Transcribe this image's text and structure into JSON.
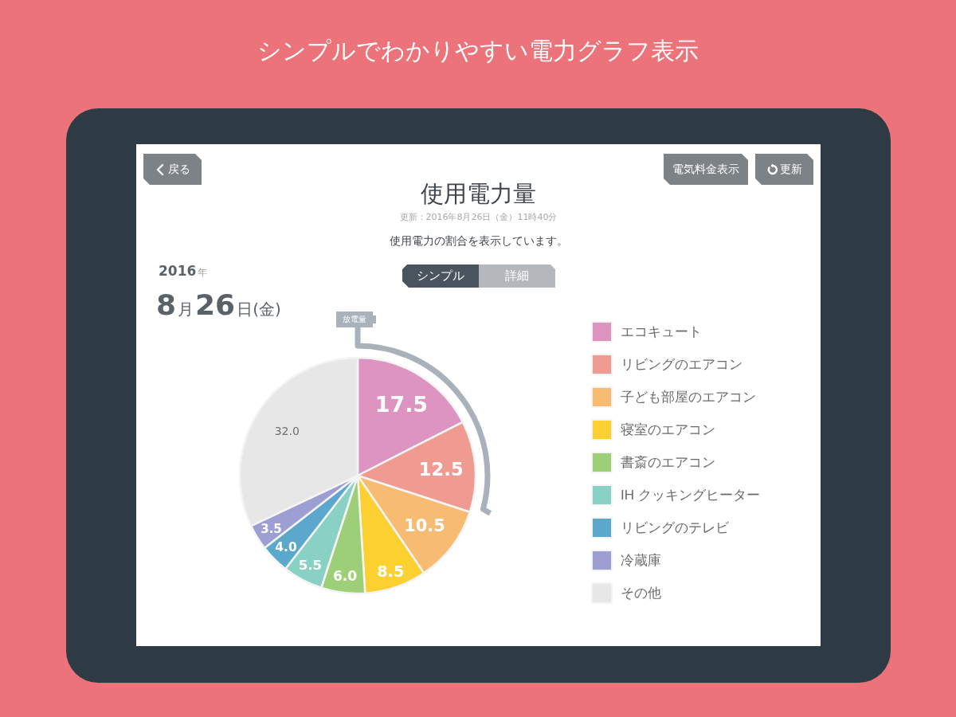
{
  "chart_data": {
    "type": "pie",
    "title": "使用電力量",
    "subtitle": "使用電力の割合を表示しています。",
    "annotations": [
      "シンプルでわかりやすい電力グラフ表示",
      "更新：2016年8月26日（金）11時40分",
      "戻る",
      "電気料金表示",
      "更新",
      "シンプル",
      "詳細",
      "2016年",
      "8月26日(金)",
      "放電量"
    ],
    "categories": [
      "エコキュート",
      "リビングのエアコン",
      "子ども部屋のエアコン",
      "寝室のエアコン",
      "書斎のエアコン",
      "IH クッキングヒーター",
      "リビングのテレビ",
      "冷蔵庫",
      "その他"
    ],
    "values": [
      17.5,
      12.5,
      10.5,
      8.5,
      6.0,
      5.5,
      4.0,
      3.5,
      32.0
    ],
    "value_labels": [
      "17.5",
      "12.5",
      "10.5",
      "8.5",
      "6.0",
      "5.5",
      "4.0",
      "3.5",
      "32.0"
    ],
    "colors": [
      "#dd94c0",
      "#f09b91",
      "#f7bb72",
      "#fcd030",
      "#9dcf78",
      "#89d1c5",
      "#5ba8cc",
      "#9d9fd3",
      "#e7e7e7"
    ],
    "legend": "right"
  }
}
